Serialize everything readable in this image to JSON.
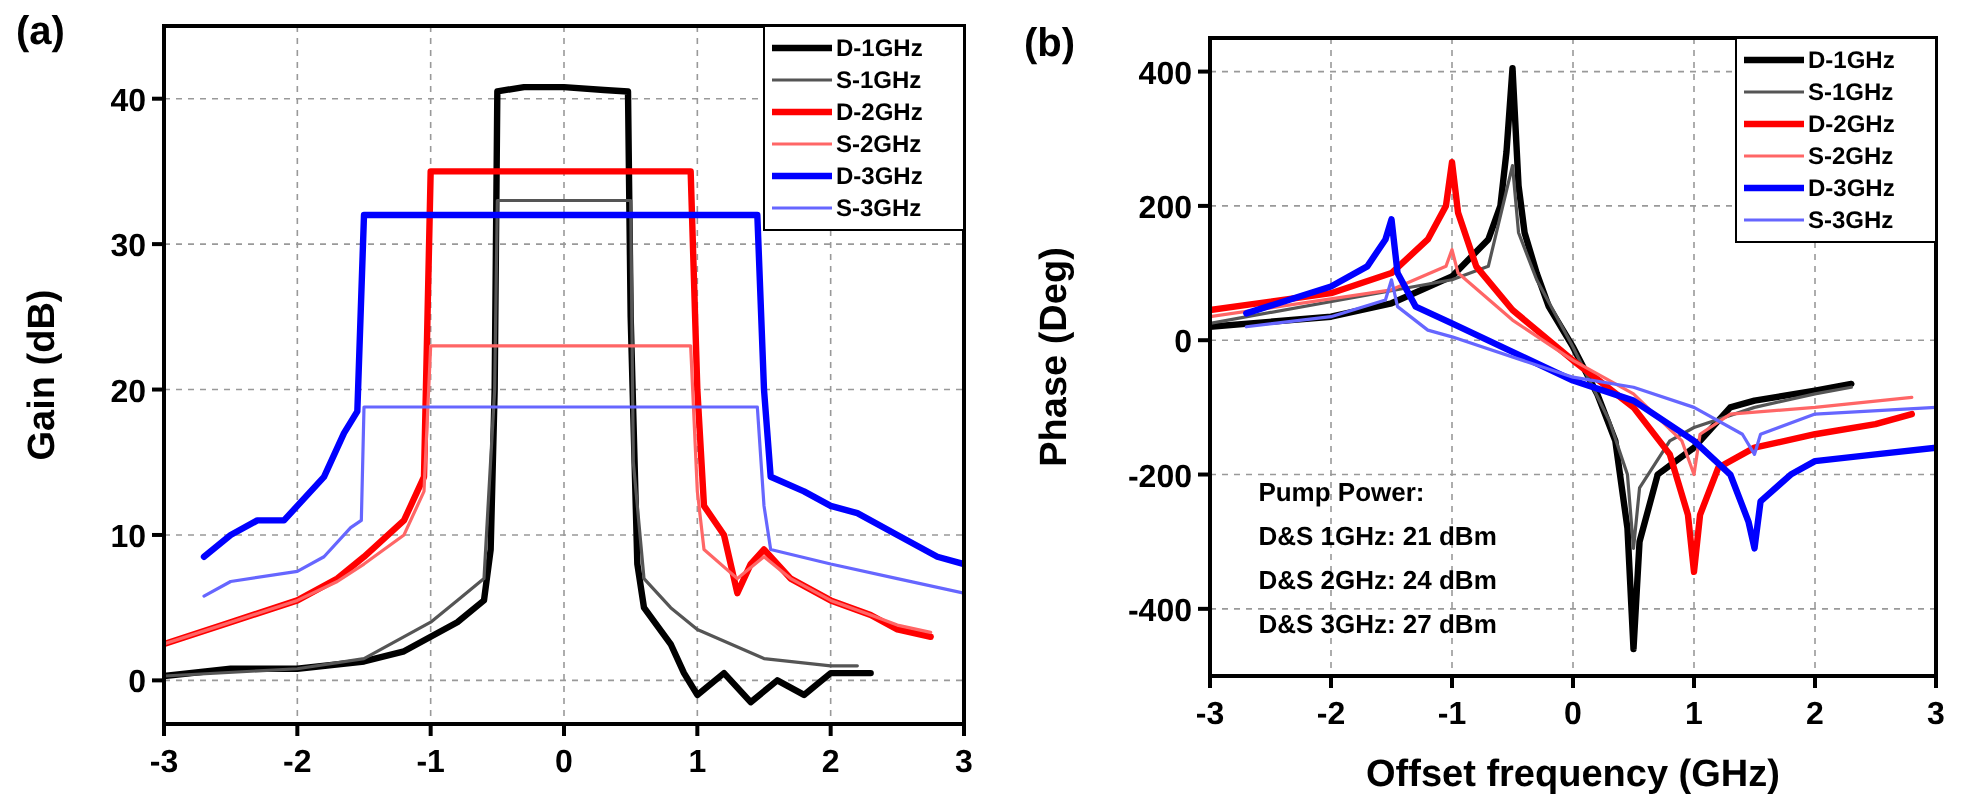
{
  "chart_data": [
    {
      "type": "line",
      "title": "(a)",
      "ylabel": "Gain (dB)",
      "xlim": [
        -3,
        3
      ],
      "ylim": [
        -3,
        45
      ],
      "xticks": [
        -3,
        -2,
        -1,
        0,
        1,
        2,
        3
      ],
      "yticks": [
        0,
        10,
        20,
        30,
        40
      ],
      "grid": true,
      "legend": "top right",
      "marker": "none",
      "line_style": "solid",
      "series": [
        {
          "name": "D-1GHz",
          "color": "#000000",
          "x": [
            -3,
            -2.5,
            -2,
            -1.5,
            -1.2,
            -1,
            -0.8,
            -0.6,
            -0.55,
            -0.52,
            -0.5,
            -0.3,
            0,
            0.3,
            0.48,
            0.5,
            0.55,
            0.6,
            0.8,
            0.9,
            1,
            1.2,
            1.4,
            1.6,
            1.8,
            2,
            2.3
          ],
          "values": [
            0.3,
            0.8,
            0.8,
            1.3,
            2,
            3,
            4,
            5.5,
            9,
            20,
            40.5,
            40.8,
            40.8,
            40.6,
            40.5,
            25,
            8,
            5,
            2.5,
            0.5,
            -1,
            0.5,
            -1.5,
            0,
            -1,
            0.5,
            0.5
          ]
        },
        {
          "name": "S-1GHz",
          "color": "#555555",
          "x": [
            -3,
            -2,
            -1.5,
            -1,
            -0.8,
            -0.6,
            -0.52,
            -0.5,
            0,
            0.5,
            0.52,
            0.6,
            0.8,
            1,
            1.5,
            2,
            2.2
          ],
          "values": [
            0.3,
            0.8,
            1.5,
            4,
            5.5,
            7,
            20,
            33,
            33,
            33,
            15,
            7,
            5,
            3.5,
            1.5,
            1,
            1
          ]
        },
        {
          "name": "D-2GHz",
          "color": "#ff0000",
          "x": [
            -3,
            -2.5,
            -2,
            -1.7,
            -1.5,
            -1.2,
            -1.05,
            -1,
            0,
            0.95,
            1,
            1.05,
            1.2,
            1.3,
            1.4,
            1.5,
            1.7,
            2,
            2.3,
            2.5,
            2.75
          ],
          "values": [
            2.5,
            4,
            5.5,
            7,
            8.5,
            11,
            14,
            35,
            35,
            35,
            20,
            12,
            10,
            6,
            8,
            9,
            7,
            5.5,
            4.5,
            3.5,
            3
          ]
        },
        {
          "name": "S-2GHz",
          "color": "#ff6666",
          "x": [
            -3,
            -2.5,
            -2,
            -1.7,
            -1.5,
            -1.2,
            -1.05,
            -1,
            0,
            0.95,
            1,
            1.05,
            1.3,
            1.5,
            1.7,
            2,
            2.3,
            2.5,
            2.75
          ],
          "values": [
            2.5,
            4,
            5.5,
            6.8,
            8,
            10,
            13,
            23,
            23,
            23,
            13,
            9,
            7,
            8.5,
            7,
            5.5,
            4.5,
            3.8,
            3.3
          ]
        },
        {
          "name": "D-3GHz",
          "color": "#0000ff",
          "x": [
            -2.7,
            -2.5,
            -2.3,
            -2.1,
            -2,
            -1.8,
            -1.65,
            -1.55,
            -1.5,
            0,
            1.45,
            1.5,
            1.55,
            1.8,
            2,
            2.2,
            2.5,
            2.8,
            3
          ],
          "values": [
            8.5,
            10,
            11,
            11,
            12,
            14,
            17,
            18.5,
            32,
            32,
            32,
            20,
            14,
            13,
            12,
            11.5,
            10,
            8.5,
            8
          ]
        },
        {
          "name": "S-3GHz",
          "color": "#6666ff",
          "x": [
            -2.7,
            -2.5,
            -2,
            -1.8,
            -1.6,
            -1.52,
            -1.5,
            0,
            1.45,
            1.5,
            1.55,
            2,
            2.5,
            3
          ],
          "values": [
            5.8,
            6.8,
            7.5,
            8.5,
            10.5,
            11,
            18.8,
            18.8,
            18.8,
            12,
            9,
            8,
            7,
            6
          ]
        }
      ]
    },
    {
      "type": "line",
      "title": "(b)",
      "xlabel": "Offset frequency (GHz)",
      "ylabel": "Phase (Deg)",
      "xlim": [
        -3,
        3
      ],
      "ylim": [
        -500,
        450
      ],
      "xticks": [
        -3,
        -2,
        -1,
        0,
        1,
        2,
        3
      ],
      "yticks": [
        -400,
        -200,
        0,
        200,
        400
      ],
      "grid": true,
      "legend": "top right",
      "marker": "none",
      "line_style": "solid",
      "annotations": [
        "Pump Power:",
        "D&S 1GHz: 21 dBm",
        "D&S 2GHz: 24 dBm",
        "D&S 3GHz: 27 dBm"
      ],
      "series": [
        {
          "name": "D-1GHz",
          "color": "#000000",
          "x": [
            -3,
            -2,
            -1.5,
            -1,
            -0.7,
            -0.6,
            -0.55,
            -0.5,
            -0.45,
            -0.4,
            -0.3,
            -0.2,
            0,
            0.2,
            0.35,
            0.45,
            0.5,
            0.55,
            0.7,
            1,
            1.3,
            1.5,
            2,
            2.3
          ],
          "values": [
            20,
            35,
            55,
            95,
            150,
            200,
            280,
            405,
            230,
            160,
            100,
            50,
            -10,
            -80,
            -150,
            -280,
            -460,
            -300,
            -200,
            -160,
            -100,
            -90,
            -75,
            -65
          ]
        },
        {
          "name": "S-1GHz",
          "color": "#555555",
          "x": [
            -3,
            -1,
            -0.7,
            -0.5,
            -0.45,
            -0.3,
            0,
            0.3,
            0.45,
            0.5,
            0.55,
            0.8,
            1,
            1.5,
            2,
            2.3
          ],
          "values": [
            25,
            90,
            110,
            260,
            160,
            90,
            -10,
            -120,
            -200,
            -310,
            -220,
            -150,
            -130,
            -100,
            -80,
            -70
          ]
        },
        {
          "name": "D-2GHz",
          "color": "#ff0000",
          "x": [
            -3,
            -2,
            -1.5,
            -1.2,
            -1.05,
            -1,
            -0.95,
            -0.8,
            -0.5,
            0,
            0.5,
            0.8,
            0.95,
            1,
            1.05,
            1.2,
            1.5,
            2,
            2.5,
            2.8
          ],
          "values": [
            45,
            70,
            100,
            150,
            200,
            265,
            190,
            110,
            45,
            -30,
            -100,
            -170,
            -260,
            -345,
            -260,
            -190,
            -160,
            -140,
            -125,
            -110
          ]
        },
        {
          "name": "S-2GHz",
          "color": "#ff6666",
          "x": [
            -3,
            -1.5,
            -1.05,
            -1,
            -0.95,
            -0.5,
            0,
            0.5,
            0.9,
            1,
            1.05,
            1.3,
            2,
            2.8
          ],
          "values": [
            35,
            75,
            110,
            135,
            100,
            30,
            -30,
            -80,
            -150,
            -200,
            -140,
            -110,
            -100,
            -85
          ]
        },
        {
          "name": "D-3GHz",
          "color": "#0000ff",
          "x": [
            -2.7,
            -2,
            -1.7,
            -1.55,
            -1.5,
            -1.45,
            -1.3,
            -1,
            0,
            0.5,
            1,
            1.3,
            1.45,
            1.5,
            1.55,
            1.8,
            2,
            2.5,
            3
          ],
          "values": [
            40,
            80,
            110,
            150,
            180,
            100,
            50,
            25,
            -60,
            -90,
            -150,
            -200,
            -270,
            -310,
            -240,
            -200,
            -180,
            -170,
            -160
          ]
        },
        {
          "name": "S-3GHz",
          "color": "#6666ff",
          "x": [
            -2.7,
            -2,
            -1.55,
            -1.5,
            -1.45,
            -1.2,
            -1,
            0,
            0.5,
            1,
            1.4,
            1.5,
            1.55,
            2,
            3
          ],
          "values": [
            20,
            35,
            60,
            90,
            50,
            15,
            5,
            -55,
            -70,
            -100,
            -140,
            -170,
            -140,
            -110,
            -100
          ]
        }
      ]
    }
  ]
}
